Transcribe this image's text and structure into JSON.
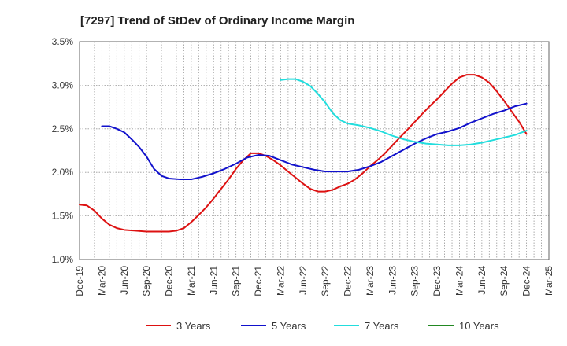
{
  "chart_data": {
    "type": "line",
    "title": "[7297]  Trend of StDev of Ordinary Income Margin",
    "xlabel": "",
    "ylabel": "",
    "ylim": [
      1.0,
      3.5
    ],
    "yticks": [
      "1.0%",
      "1.5%",
      "2.0%",
      "2.5%",
      "3.0%",
      "3.5%"
    ],
    "xticks": [
      "Dec-19",
      "Mar-20",
      "Jun-20",
      "Sep-20",
      "Dec-20",
      "Mar-21",
      "Jun-21",
      "Sep-21",
      "Dec-21",
      "Mar-22",
      "Jun-22",
      "Sep-22",
      "Dec-22",
      "Mar-23",
      "Jun-23",
      "Sep-23",
      "Dec-23",
      "Mar-24",
      "Jun-24",
      "Sep-24",
      "Dec-24",
      "Mar-25"
    ],
    "grid": true,
    "legend_position": "bottom",
    "series": [
      {
        "name": "3 Years",
        "color": "#dd1111",
        "points": [
          [
            0,
            1.63
          ],
          [
            0.33,
            1.62
          ],
          [
            0.67,
            1.56
          ],
          [
            1,
            1.47
          ],
          [
            1.33,
            1.4
          ],
          [
            1.67,
            1.36
          ],
          [
            2,
            1.34
          ],
          [
            2.5,
            1.33
          ],
          [
            3,
            1.32
          ],
          [
            3.5,
            1.32
          ],
          [
            4,
            1.32
          ],
          [
            4.33,
            1.33
          ],
          [
            4.67,
            1.36
          ],
          [
            5,
            1.43
          ],
          [
            5.33,
            1.51
          ],
          [
            5.67,
            1.6
          ],
          [
            6,
            1.7
          ],
          [
            6.33,
            1.81
          ],
          [
            6.67,
            1.92
          ],
          [
            7,
            2.04
          ],
          [
            7.33,
            2.14
          ],
          [
            7.67,
            2.22
          ],
          [
            8,
            2.22
          ],
          [
            8.33,
            2.19
          ],
          [
            8.67,
            2.14
          ],
          [
            9,
            2.08
          ],
          [
            9.33,
            2.01
          ],
          [
            9.67,
            1.94
          ],
          [
            10,
            1.87
          ],
          [
            10.33,
            1.81
          ],
          [
            10.67,
            1.78
          ],
          [
            11,
            1.78
          ],
          [
            11.33,
            1.8
          ],
          [
            11.67,
            1.84
          ],
          [
            12,
            1.87
          ],
          [
            12.33,
            1.92
          ],
          [
            12.67,
            1.99
          ],
          [
            13,
            2.07
          ],
          [
            13.33,
            2.14
          ],
          [
            13.67,
            2.22
          ],
          [
            14,
            2.31
          ],
          [
            14.33,
            2.4
          ],
          [
            14.67,
            2.49
          ],
          [
            15,
            2.58
          ],
          [
            15.33,
            2.67
          ],
          [
            15.67,
            2.76
          ],
          [
            16,
            2.84
          ],
          [
            16.33,
            2.93
          ],
          [
            16.67,
            3.02
          ],
          [
            17,
            3.09
          ],
          [
            17.33,
            3.12
          ],
          [
            17.67,
            3.12
          ],
          [
            18,
            3.09
          ],
          [
            18.33,
            3.03
          ],
          [
            18.67,
            2.93
          ],
          [
            19,
            2.82
          ],
          [
            19.33,
            2.7
          ],
          [
            19.67,
            2.58
          ],
          [
            20,
            2.44
          ]
        ]
      },
      {
        "name": "5 Years",
        "color": "#1111cc",
        "points": [
          [
            1,
            2.53
          ],
          [
            1.33,
            2.53
          ],
          [
            1.67,
            2.5
          ],
          [
            2,
            2.46
          ],
          [
            2.33,
            2.38
          ],
          [
            2.67,
            2.29
          ],
          [
            3,
            2.18
          ],
          [
            3.33,
            2.04
          ],
          [
            3.67,
            1.96
          ],
          [
            4,
            1.93
          ],
          [
            4.5,
            1.92
          ],
          [
            5,
            1.92
          ],
          [
            5.5,
            1.95
          ],
          [
            6,
            1.99
          ],
          [
            6.5,
            2.04
          ],
          [
            7,
            2.1
          ],
          [
            7.5,
            2.17
          ],
          [
            8,
            2.2
          ],
          [
            8.5,
            2.19
          ],
          [
            9,
            2.14
          ],
          [
            9.5,
            2.09
          ],
          [
            10,
            2.06
          ],
          [
            10.5,
            2.03
          ],
          [
            11,
            2.01
          ],
          [
            11.5,
            2.01
          ],
          [
            12,
            2.01
          ],
          [
            12.5,
            2.03
          ],
          [
            13,
            2.07
          ],
          [
            13.5,
            2.12
          ],
          [
            14,
            2.19
          ],
          [
            14.5,
            2.26
          ],
          [
            15,
            2.33
          ],
          [
            15.5,
            2.39
          ],
          [
            16,
            2.44
          ],
          [
            16.5,
            2.47
          ],
          [
            17,
            2.51
          ],
          [
            17.5,
            2.57
          ],
          [
            18,
            2.62
          ],
          [
            18.5,
            2.67
          ],
          [
            19,
            2.71
          ],
          [
            19.5,
            2.76
          ],
          [
            20,
            2.79
          ]
        ]
      },
      {
        "name": "7 Years",
        "color": "#22dddd",
        "points": [
          [
            9,
            3.06
          ],
          [
            9.33,
            3.07
          ],
          [
            9.67,
            3.07
          ],
          [
            10,
            3.04
          ],
          [
            10.33,
            2.99
          ],
          [
            10.67,
            2.9
          ],
          [
            11,
            2.8
          ],
          [
            11.33,
            2.68
          ],
          [
            11.67,
            2.6
          ],
          [
            12,
            2.56
          ],
          [
            12.5,
            2.54
          ],
          [
            13,
            2.51
          ],
          [
            13.5,
            2.47
          ],
          [
            14,
            2.42
          ],
          [
            14.5,
            2.38
          ],
          [
            15,
            2.35
          ],
          [
            15.5,
            2.33
          ],
          [
            16,
            2.32
          ],
          [
            16.5,
            2.31
          ],
          [
            17,
            2.31
          ],
          [
            17.5,
            2.32
          ],
          [
            18,
            2.34
          ],
          [
            18.5,
            2.37
          ],
          [
            19,
            2.4
          ],
          [
            19.5,
            2.43
          ],
          [
            20,
            2.48
          ]
        ]
      },
      {
        "name": "10 Years",
        "color": "#228822",
        "points": []
      }
    ]
  }
}
